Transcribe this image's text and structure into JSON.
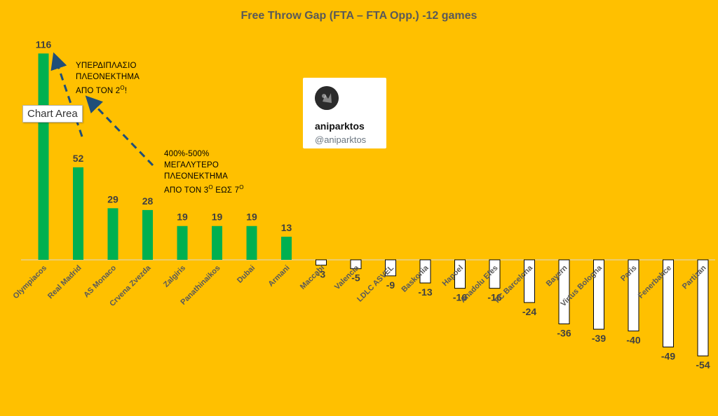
{
  "chart_data": {
    "type": "bar",
    "title": "Free Throw Gap (FTA – FTA Opp.) -12 games",
    "xlabel": "",
    "ylabel": "",
    "ylim": [
      -65,
      120
    ],
    "grid": false,
    "legend": "none",
    "categories": [
      "Olympiacos",
      "Real Madrid",
      "AS Monaco",
      "Crvena Zvezda",
      "Zalgiris",
      "Panathinaikos",
      "Dubai",
      "Armani",
      "Maccabi",
      "Valencia",
      "LDLC ASVEL",
      "Baskonia",
      "Hapoel",
      "Anadolu Efes",
      "FC Barcelona",
      "Bayern",
      "Virtus Bologna",
      "Paris",
      "Fenerbahce",
      "Partizan"
    ],
    "series": [
      {
        "values": [
          116,
          52,
          29,
          28,
          19,
          19,
          19,
          13,
          -3,
          -5,
          -9,
          -13,
          -16,
          -16,
          -24,
          -36,
          -39,
          -40,
          -49,
          -54
        ]
      }
    ],
    "colors": {
      "positive": "#00B050",
      "negative": "#FFFFFF",
      "negative_outline": "#000000",
      "label": "#404040"
    }
  },
  "annotations": {
    "first": [
      "ΥΠΕΡΔΙΠΛΑΣΙΟ",
      "ΠΛΕΟΝΕΚΤΗΜΑ",
      "ΑΠΟ ΤΟΝ 2",
      "Ο",
      "!"
    ],
    "second": [
      "400%-500%",
      "ΜΕΓΑΛΥΤΕΡΟ",
      "ΠΛΕΟΝΕΚΤΗΜΑ",
      "ΑΠΟ ΤΟΝ 3",
      "Ο",
      " ΕΩΣ 7",
      "Ο"
    ],
    "arrow_color": "#1F4E79"
  },
  "tooltip": {
    "label": "Chart Area"
  },
  "watermark": {
    "name": "aniparktos",
    "handle": "@aniparktos"
  },
  "colors": {
    "background": "#FFC000",
    "title": "#595959"
  }
}
